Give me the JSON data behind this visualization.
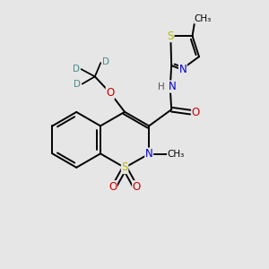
{
  "background_color": "#e6e6e6",
  "atom_colors": {
    "C": "#000000",
    "H": "#555555",
    "N": "#0000cc",
    "O": "#cc0000",
    "S": "#b8b800",
    "D": "#4a8a8a"
  },
  "bond_color": "#000000",
  "font_size": 8.5,
  "fig_size": [
    3.0,
    3.0
  ],
  "dpi": 100
}
